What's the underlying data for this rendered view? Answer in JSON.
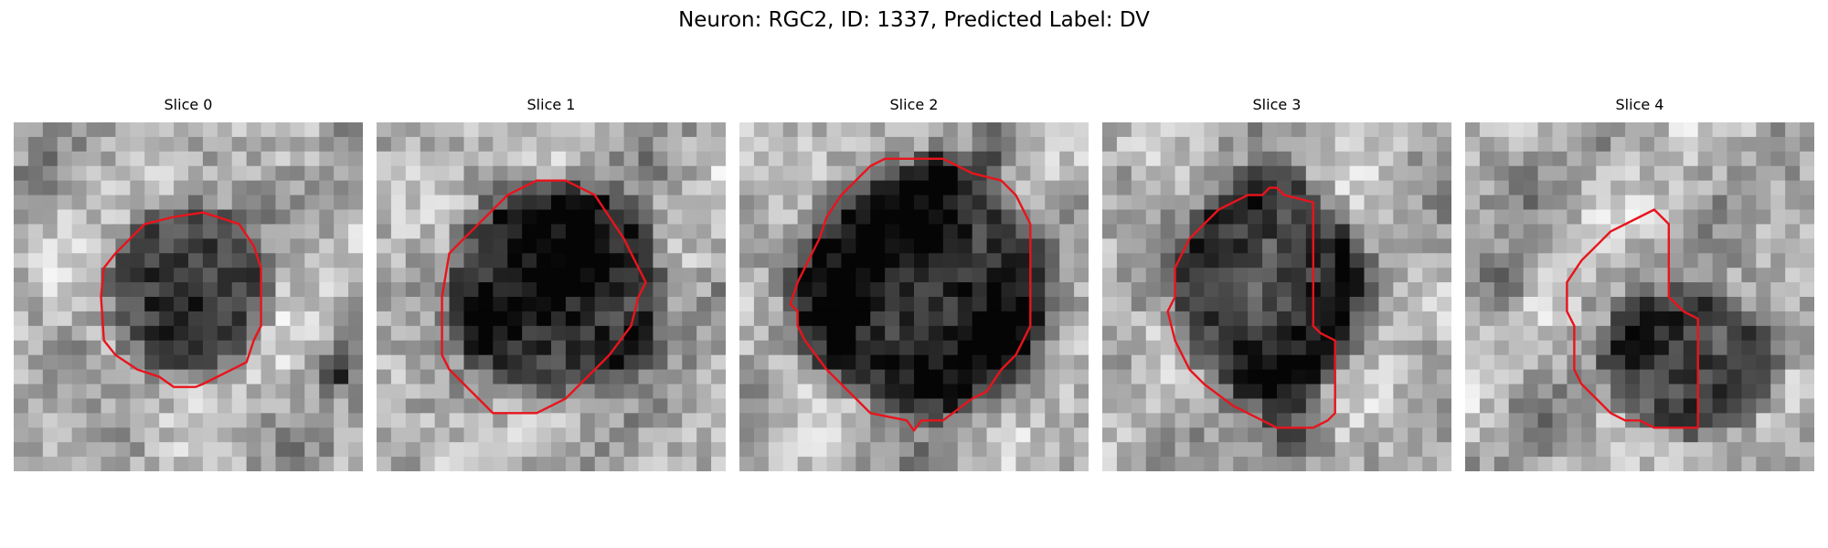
{
  "figure": {
    "title": "Neuron: RGC2, ID: 1337, Predicted Label: DV"
  },
  "colors": {
    "background": "#ffffff",
    "contour": "#e8141c",
    "image_colormap": "grayscale"
  },
  "panels": [
    {
      "title": "Slice 0",
      "image": "grayscale-microscopy-crop",
      "overlay": "red-segmentation-contour"
    },
    {
      "title": "Slice 1",
      "image": "grayscale-microscopy-crop",
      "overlay": "red-segmentation-contour"
    },
    {
      "title": "Slice 2",
      "image": "grayscale-microscopy-crop",
      "overlay": "red-segmentation-contour"
    },
    {
      "title": "Slice 3",
      "image": "grayscale-microscopy-crop",
      "overlay": "red-segmentation-contour"
    },
    {
      "title": "Slice 4",
      "image": "grayscale-microscopy-crop",
      "overlay": "red-segmentation-contour"
    }
  ]
}
